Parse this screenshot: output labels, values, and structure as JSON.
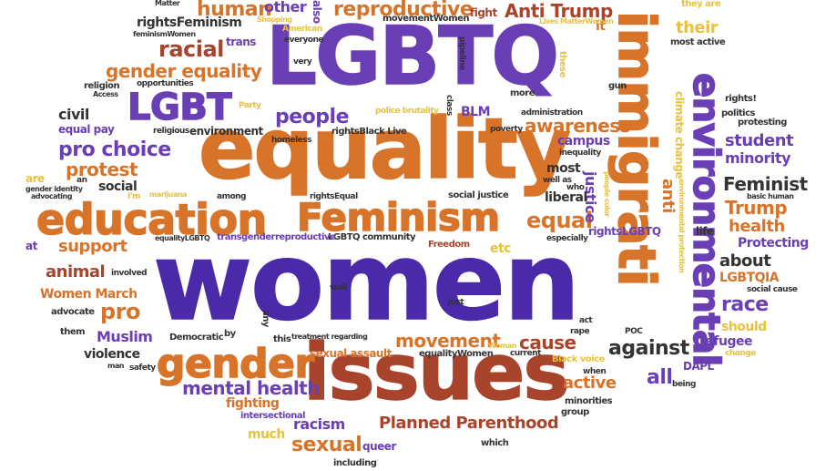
{
  "words": [
    {
      "key": "women",
      "text": "women",
      "color": "#4a2aa8"
    },
    {
      "key": "equality",
      "text": "equality",
      "color": "#d8742a"
    },
    {
      "key": "lgbtq",
      "text": "LGBTQ",
      "color": "#6a3fb5"
    },
    {
      "key": "issues",
      "text": "issues",
      "color": "#a8442c"
    },
    {
      "key": "immigrati",
      "text": "immigrati",
      "color": "#d8742a"
    },
    {
      "key": "environmental",
      "text": "environmental",
      "color": "#6a3fb5"
    },
    {
      "key": "education",
      "text": "education",
      "color": "#d8742a"
    },
    {
      "key": "feminism",
      "text": "Feminism",
      "color": "#d8742a"
    },
    {
      "key": "gender",
      "text": "gender",
      "color": "#d8742a"
    },
    {
      "key": "lgbt",
      "text": "LGBT",
      "color": "#6a3fb5"
    },
    {
      "key": "reproductive",
      "text": "reproductive",
      "color": "#d8742a"
    },
    {
      "key": "human",
      "text": "human",
      "color": "#d8742a"
    },
    {
      "key": "anti_trump",
      "text": "Anti Trump",
      "color": "#a8442c"
    },
    {
      "key": "gender_equality",
      "text": "gender equality",
      "color": "#d8742a"
    },
    {
      "key": "racial",
      "text": "racial",
      "color": "#a8442c"
    },
    {
      "key": "pro_choice",
      "text": "pro choice",
      "color": "#6a3fb5"
    },
    {
      "key": "protest",
      "text": "protest",
      "color": "#d8742a"
    },
    {
      "key": "people",
      "text": "people",
      "color": "#6a3fb5"
    },
    {
      "key": "awareness",
      "text": "awareness",
      "color": "#d8742a"
    },
    {
      "key": "movement",
      "text": "movement",
      "color": "#d8742a"
    },
    {
      "key": "cause",
      "text": "cause",
      "color": "#a8442c"
    },
    {
      "key": "against",
      "text": "against",
      "color": "#333333"
    },
    {
      "key": "mental_health",
      "text": "mental health",
      "color": "#6a3fb5"
    },
    {
      "key": "planned_parenthood",
      "text": "Planned Parenthood",
      "color": "#a8442c"
    },
    {
      "key": "sexual",
      "text": "sexual",
      "color": "#d8742a"
    },
    {
      "key": "racism",
      "text": "racism",
      "color": "#6a3fb5"
    },
    {
      "key": "muslim",
      "text": "Muslim",
      "color": "#6a3fb5"
    },
    {
      "key": "pro",
      "text": "pro",
      "color": "#d8742a"
    },
    {
      "key": "women_march",
      "text": "Women March",
      "color": "#d8742a"
    },
    {
      "key": "animal",
      "text": "animal",
      "color": "#a8442c"
    },
    {
      "key": "support",
      "text": "support",
      "color": "#d8742a"
    },
    {
      "key": "equal",
      "text": "equal",
      "color": "#d8742a"
    },
    {
      "key": "trump",
      "text": "Trump",
      "color": "#d8742a"
    },
    {
      "key": "feminist",
      "text": "Feminist",
      "color": "#333333"
    },
    {
      "key": "student",
      "text": "student",
      "color": "#6a3fb5"
    },
    {
      "key": "minority",
      "text": "minority",
      "color": "#6a3fb5"
    },
    {
      "key": "health",
      "text": "health",
      "color": "#d8742a"
    },
    {
      "key": "protecting",
      "text": "Protecting",
      "color": "#6a3fb5"
    },
    {
      "key": "about",
      "text": "about",
      "color": "#333333"
    },
    {
      "key": "lgbtqia",
      "text": "LGBTQIA",
      "color": "#d8742a"
    },
    {
      "key": "race",
      "text": "race",
      "color": "#6a3fb5"
    },
    {
      "key": "should",
      "text": "should",
      "color": "#e8c23e"
    },
    {
      "key": "refugee",
      "text": "refugee",
      "color": "#6a3fb5"
    },
    {
      "key": "all",
      "text": "all",
      "color": "#6a3fb5"
    },
    {
      "key": "active",
      "text": "active",
      "color": "#d8742a"
    },
    {
      "key": "civil",
      "text": "civil",
      "color": "#333333"
    },
    {
      "key": "equal_pay",
      "text": "equal pay",
      "color": "#6a3fb5"
    },
    {
      "key": "social",
      "text": "social",
      "color": "#333333"
    },
    {
      "key": "justice",
      "text": "justice",
      "color": "#6a3fb5"
    },
    {
      "key": "anti",
      "text": "anti",
      "color": "#d8742a"
    },
    {
      "key": "blm",
      "text": "BLM",
      "color": "#6a3fb5"
    },
    {
      "key": "campus",
      "text": "campus",
      "color": "#6a3fb5"
    },
    {
      "key": "most",
      "text": "most",
      "color": "#333333"
    },
    {
      "key": "liberal",
      "text": "liberal",
      "color": "#333333"
    },
    {
      "key": "other",
      "text": "other",
      "color": "#6a3fb5"
    },
    {
      "key": "rightsfeminism",
      "text": "rightsFeminism",
      "color": "#333333"
    },
    {
      "key": "violence",
      "text": "violence",
      "color": "#333333"
    },
    {
      "key": "queer",
      "text": "queer",
      "color": "#6a3fb5"
    },
    {
      "key": "fighting",
      "text": "fighting",
      "color": "#d8742a"
    },
    {
      "key": "much",
      "text": "much",
      "color": "#e8c23e"
    },
    {
      "key": "their",
      "text": "their",
      "color": "#e8c23e"
    },
    {
      "key": "environment",
      "text": "environment",
      "color": "#333333"
    },
    {
      "key": "sexual_assault",
      "text": "sexual assault",
      "color": "#d8742a"
    },
    {
      "key": "etc",
      "text": "etc",
      "color": "#e8c23e"
    },
    {
      "key": "rightslgbtq",
      "text": "rightsLGBTQ",
      "color": "#6a3fb5"
    },
    {
      "key": "life",
      "text": "life",
      "color": "#333333"
    },
    {
      "key": "fight",
      "text": "fight",
      "color": "#a8442c"
    },
    {
      "key": "it",
      "text": "it",
      "color": "#d8742a"
    },
    {
      "key": "trans",
      "text": "trans",
      "color": "#6a3fb5"
    },
    {
      "key": "are",
      "text": "are",
      "color": "#e8c23e"
    },
    {
      "key": "at",
      "text": "at",
      "color": "#6a3fb5"
    },
    {
      "key": "them",
      "text": "them",
      "color": "#333333"
    },
    {
      "key": "advocate",
      "text": "advocate",
      "color": "#333333"
    },
    {
      "key": "democratic",
      "text": "Democratic",
      "color": "#333333"
    },
    {
      "key": "intersectional",
      "text": "intersectional",
      "color": "#6a3fb5"
    },
    {
      "key": "including",
      "text": "including",
      "color": "#333333"
    },
    {
      "key": "which",
      "text": "which",
      "color": "#333333"
    },
    {
      "key": "group",
      "text": "group",
      "color": "#333333"
    },
    {
      "key": "minorities",
      "text": "minorities",
      "color": "#333333"
    },
    {
      "key": "dapl",
      "text": "DAPL",
      "color": "#6a3fb5"
    },
    {
      "key": "lgbtq_community",
      "text": "LGBTQ community",
      "color": "#333333"
    },
    {
      "key": "freedom",
      "text": "Freedom",
      "color": "#a8442c"
    },
    {
      "key": "transgender",
      "text": "transgenderreproductive",
      "color": "#6a3fb5"
    },
    {
      "key": "movementwomen",
      "text": "movementWomen",
      "color": "#333333"
    },
    {
      "key": "rightsblack",
      "text": "rightsBlack Live",
      "color": "#333333"
    },
    {
      "key": "police_brutality",
      "text": "police brutality",
      "color": "#e8c23e"
    },
    {
      "key": "climate_change",
      "text": "climate change",
      "color": "#e8c23e"
    },
    {
      "key": "equalitywomen",
      "text": "equalityWomen",
      "color": "#333333"
    },
    {
      "key": "black_voice",
      "text": "Black voice",
      "color": "#e8c23e"
    },
    {
      "key": "social_justice",
      "text": "social justice",
      "color": "#333333"
    },
    {
      "key": "rights_excl",
      "text": "rights!",
      "color": "#333333"
    },
    {
      "key": "politics",
      "text": "politics",
      "color": "#333333"
    },
    {
      "key": "protesting",
      "text": "protesting",
      "color": "#333333"
    },
    {
      "key": "most_active",
      "text": "most active",
      "color": "#333333"
    },
    {
      "key": "they_are",
      "text": "they are",
      "color": "#e8c23e"
    },
    {
      "key": "also",
      "text": "also",
      "color": "#6a3fb5"
    },
    {
      "key": "more",
      "text": "more",
      "color": "#333333"
    },
    {
      "key": "gun",
      "text": "gun",
      "color": "#333333"
    },
    {
      "key": "poverty",
      "text": "poverty",
      "color": "#333333"
    },
    {
      "key": "homeless",
      "text": "homeless",
      "color": "#333333"
    },
    {
      "key": "religion",
      "text": "religion",
      "color": "#333333"
    },
    {
      "key": "opportunities",
      "text": "opportunities",
      "color": "#333333"
    },
    {
      "key": "religious",
      "text": "religious",
      "color": "#333333"
    },
    {
      "key": "among",
      "text": "among",
      "color": "#333333"
    },
    {
      "key": "wall",
      "text": "wall",
      "color": "#333333"
    },
    {
      "key": "just",
      "text": "just",
      "color": "#333333"
    },
    {
      "key": "current",
      "text": "current",
      "color": "#333333"
    },
    {
      "key": "when",
      "text": "when",
      "color": "#333333"
    },
    {
      "key": "being",
      "text": "being",
      "color": "#333333"
    },
    {
      "key": "change",
      "text": "change",
      "color": "#e8c23e"
    },
    {
      "key": "safety",
      "text": "safety",
      "color": "#333333"
    },
    {
      "key": "by",
      "text": "by",
      "color": "#333333"
    },
    {
      "key": "any",
      "text": "any",
      "color": "#333333"
    },
    {
      "key": "this",
      "text": "this",
      "color": "#333333"
    },
    {
      "key": "treatment_regarding",
      "text": "treatment regarding",
      "color": "#333333"
    },
    {
      "key": "everyone",
      "text": "everyone",
      "color": "#333333"
    },
    {
      "key": "american",
      "text": "American",
      "color": "#e8c23e"
    },
    {
      "key": "shopping",
      "text": "Shopping",
      "color": "#e8c23e"
    },
    {
      "key": "very",
      "text": "very",
      "color": "#333333"
    },
    {
      "key": "lives_matter",
      "text": "Lives MatterWomen",
      "color": "#e8c23e"
    },
    {
      "key": "pipeline",
      "text": "pipeline",
      "color": "#333333"
    },
    {
      "key": "these",
      "text": "these",
      "color": "#e8c23e"
    },
    {
      "key": "class",
      "text": "class",
      "color": "#333333"
    },
    {
      "key": "administration",
      "text": "administration",
      "color": "#333333"
    },
    {
      "key": "inequality",
      "text": "inequality",
      "color": "#333333"
    },
    {
      "key": "well_as",
      "text": "well as",
      "color": "#333333"
    },
    {
      "key": "who",
      "text": "who",
      "color": "#333333"
    },
    {
      "key": "especially",
      "text": "especially",
      "color": "#333333"
    },
    {
      "key": "people_color",
      "text": "people color",
      "color": "#e8c23e"
    },
    {
      "key": "environmental_protection",
      "text": "environmental protection",
      "color": "#e8c23e"
    },
    {
      "key": "basic_human",
      "text": "basic human",
      "color": "#333333"
    },
    {
      "key": "social_cause",
      "text": "social cause",
      "color": "#333333"
    },
    {
      "key": "rightsequal",
      "text": "rightsEqual",
      "color": "#333333"
    },
    {
      "key": "gender_identity",
      "text": "gender identity",
      "color": "#333333"
    },
    {
      "key": "advocating",
      "text": "advocating",
      "color": "#333333"
    },
    {
      "key": "involved",
      "text": "involved",
      "color": "#333333"
    },
    {
      "key": "marijuana",
      "text": "marijuana",
      "color": "#e8c23e"
    },
    {
      "key": "im",
      "text": "I'm",
      "color": "#e8c23e"
    },
    {
      "key": "access",
      "text": "Access",
      "color": "#333333"
    },
    {
      "key": "equalitylgbtq",
      "text": "equalityLGBTQ",
      "color": "#333333"
    },
    {
      "key": "poc",
      "text": "POC",
      "color": "#333333"
    },
    {
      "key": "rape",
      "text": "rape",
      "color": "#333333"
    },
    {
      "key": "act",
      "text": "act",
      "color": "#333333"
    },
    {
      "key": "woman",
      "text": "Woman",
      "color": "#e8c23e"
    },
    {
      "key": "an",
      "text": "an",
      "color": "#333333"
    },
    {
      "key": "matter",
      "text": "Matter",
      "color": "#333333"
    },
    {
      "key": "party",
      "text": "Party",
      "color": "#e8c23e"
    },
    {
      "key": "feminismwomen",
      "text": "feminismWomen",
      "color": "#333333"
    },
    {
      "key": "man",
      "text": "man",
      "color": "#333333"
    }
  ]
}
